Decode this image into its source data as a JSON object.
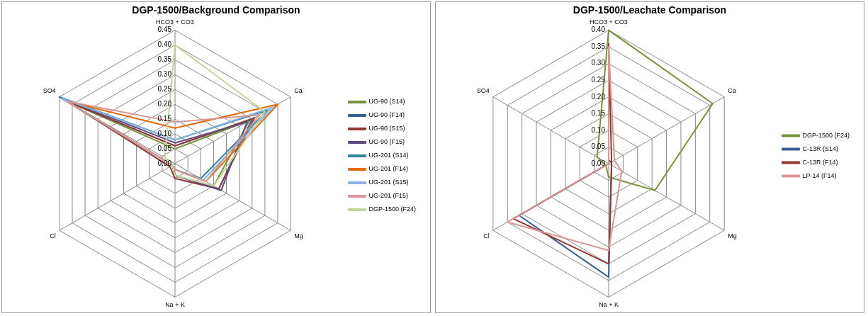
{
  "chart_data": [
    {
      "type": "radar",
      "title": "DGP-1500/Background Comparison",
      "categories": [
        "HCO3 + CO3",
        "Ca",
        "Mg",
        "Na + K",
        "Cl",
        "SO4"
      ],
      "ylim": [
        0,
        0.45
      ],
      "yticks": [
        {
          "value": 0,
          "label": "0.00"
        },
        {
          "value": 0.05,
          "label": "0.05"
        },
        {
          "value": 0.1,
          "label": "0.10"
        },
        {
          "value": 0.15,
          "label": "0.15"
        },
        {
          "value": 0.2,
          "label": "0.20"
        },
        {
          "value": 0.25,
          "label": "0.25"
        },
        {
          "value": 0.3,
          "label": "0.30"
        },
        {
          "value": 0.35,
          "label": "0.35"
        },
        {
          "value": 0.4,
          "label": "0.40"
        },
        {
          "value": 0.45,
          "label": "0.45"
        }
      ],
      "grid": true,
      "legend": "right",
      "series": [
        {
          "name": "UG-90 (S14)",
          "color": "#77933c",
          "values": [
            0.05,
            0.29,
            0.15,
            0.04,
            0.01,
            0.42
          ]
        },
        {
          "name": "UG-90 (F14)",
          "color": "#376092",
          "values": [
            0.06,
            0.3,
            0.17,
            0.04,
            0.01,
            0.43
          ]
        },
        {
          "name": "UG-90 (S15)",
          "color": "#953735",
          "values": [
            0.06,
            0.31,
            0.17,
            0.05,
            0.02,
            0.42
          ]
        },
        {
          "name": "UG-90 (F15)",
          "color": "#604a7b",
          "values": [
            0.07,
            0.28,
            0.18,
            0.04,
            0.01,
            0.44
          ]
        },
        {
          "name": "UG-201 (S14)",
          "color": "#31859c",
          "values": [
            0.08,
            0.36,
            0.1,
            0.02,
            0.01,
            0.45
          ]
        },
        {
          "name": "UG-201 (F14)",
          "color": "#e46c0a",
          "values": [
            0.12,
            0.4,
            0.12,
            0.02,
            0.01,
            0.42
          ]
        },
        {
          "name": "UG-201 (S15)",
          "color": "#8eb4e3",
          "values": [
            0.08,
            0.38,
            0.11,
            0.02,
            0.01,
            0.44
          ]
        },
        {
          "name": "UG-201 (F15)",
          "color": "#d99694",
          "values": [
            0.14,
            0.33,
            0.12,
            0.02,
            0.01,
            0.42
          ]
        },
        {
          "name": "DGP-1500 (F24)",
          "color": "#c3d69b",
          "values": [
            0.4,
            0.35,
            0.15,
            0.04,
            0.01,
            0.04
          ]
        }
      ]
    },
    {
      "type": "radar",
      "title": "DGP-1500/Leachate Comparison",
      "categories": [
        "HCO3 + CO3",
        "Ca",
        "Mg",
        "Na + K",
        "Cl",
        "SO4"
      ],
      "ylim": [
        0,
        0.4
      ],
      "yticks": [
        {
          "value": 0,
          "label": "0.00"
        },
        {
          "value": 0.05,
          "label": "0.05"
        },
        {
          "value": 0.1,
          "label": "0.10"
        },
        {
          "value": 0.15,
          "label": "0.15"
        },
        {
          "value": 0.2,
          "label": "0.20"
        },
        {
          "value": 0.25,
          "label": "0.25"
        },
        {
          "value": 0.3,
          "label": "0.30"
        },
        {
          "value": 0.35,
          "label": "0.35"
        },
        {
          "value": 0.4,
          "label": "0.40"
        }
      ],
      "grid": true,
      "legend": "right",
      "series": [
        {
          "name": "DGP-1500 (F24)",
          "color": "#77933c",
          "values": [
            0.4,
            0.36,
            0.16,
            0.04,
            0.01,
            0.04
          ]
        },
        {
          "name": "C-13R (S14)",
          "color": "#376092",
          "values": [
            0.01,
            0.01,
            0.01,
            0.34,
            0.31,
            0
          ]
        },
        {
          "name": "C-13R (F14)",
          "color": "#953735",
          "values": [
            0.36,
            0.01,
            0.01,
            0.3,
            0.33,
            0
          ]
        },
        {
          "name": "LP-14 (F14)",
          "color": "#d99694",
          "values": [
            0.35,
            0.02,
            0.045,
            0.26,
            0.35,
            0
          ]
        }
      ]
    }
  ]
}
